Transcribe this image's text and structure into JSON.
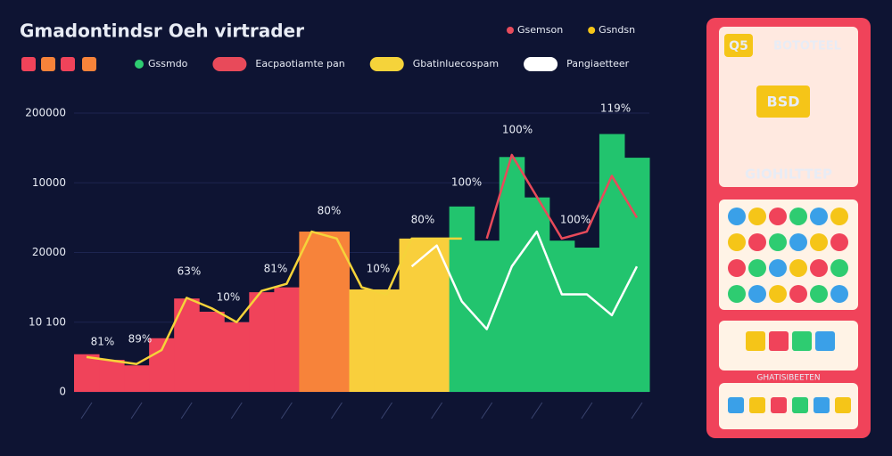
{
  "chart_data": {
    "type": "bar",
    "title": "Gmadontindsr Oeh virtrader",
    "top_legend": [
      {
        "name": "Gsemson",
        "color": "#e74c5c"
      },
      {
        "name": "Gsndsn",
        "color": "#f5c518"
      }
    ],
    "ylim": [
      0,
      4
    ],
    "yticks": [
      {
        "value": 0,
        "label": "0"
      },
      {
        "value": 1,
        "label": "10 100"
      },
      {
        "value": 2,
        "label": "20000"
      },
      {
        "value": 3,
        "label": "10000"
      },
      {
        "value": 4,
        "label": "200000"
      }
    ],
    "series": [
      {
        "name": "Gssmdo",
        "color": "#2ecc71",
        "kind": "bar",
        "colors": [
          "#f0435a",
          "#f0435a",
          "#f0435a",
          "#f0435a",
          "#f0435a",
          "#f0435a",
          "#f0435a",
          "#f0435a",
          "#f0435a",
          "#f7833a",
          "#f7833a",
          "#f9cf3c",
          "#f9cf3c",
          "#f9cf3c",
          "#f9cf3c",
          "#22c46e",
          "#22c46e",
          "#22c46e",
          "#22c46e",
          "#22c46e",
          "#22c46e",
          "#22c46e",
          "#22c46e"
        ],
        "values": [
          0.54,
          0.46,
          0.38,
          0.77,
          1.34,
          1.15,
          1.0,
          1.43,
          1.5,
          2.3,
          2.3,
          1.47,
          1.47,
          2.2,
          2.2,
          2.66,
          2.17,
          3.37,
          2.79,
          2.17,
          2.07,
          3.7,
          3.36
        ]
      },
      {
        "name": "Eacpaotiamte pan",
        "color": "#e84a5a",
        "kind": "line",
        "values": [
          null,
          null,
          null,
          null,
          null,
          null,
          null,
          null,
          null,
          null,
          null,
          null,
          null,
          null,
          null,
          null,
          2.2,
          3.4,
          2.8,
          2.2,
          2.3,
          3.1,
          2.5
        ]
      },
      {
        "name": "Gbatinluecospam",
        "color": "#f5d33a",
        "kind": "line",
        "values": [
          0.5,
          0.45,
          0.4,
          0.6,
          1.35,
          1.2,
          1.0,
          1.45,
          1.55,
          2.3,
          2.2,
          1.5,
          1.4,
          2.2,
          2.2,
          2.2,
          null,
          null,
          null,
          null,
          null,
          null,
          null
        ]
      },
      {
        "name": "Pangiaetteer",
        "color": "#ffffff",
        "kind": "line",
        "values": [
          null,
          null,
          null,
          null,
          null,
          null,
          null,
          null,
          null,
          null,
          null,
          null,
          null,
          1.8,
          2.1,
          1.3,
          0.9,
          1.8,
          2.3,
          1.4,
          1.4,
          1.1,
          1.8
        ]
      }
    ],
    "annotations": [
      "81%",
      "89%",
      "63%",
      "10%",
      "81%",
      "80%",
      "10%",
      "80%",
      "100%",
      "100%",
      "100%",
      "119%"
    ]
  },
  "panel": {
    "badge": "Q5",
    "heading": "BOTOTEEL",
    "banner": "BSD",
    "subheading": "GIOHILTTEP",
    "footer": "GHATISIBEETEN"
  }
}
